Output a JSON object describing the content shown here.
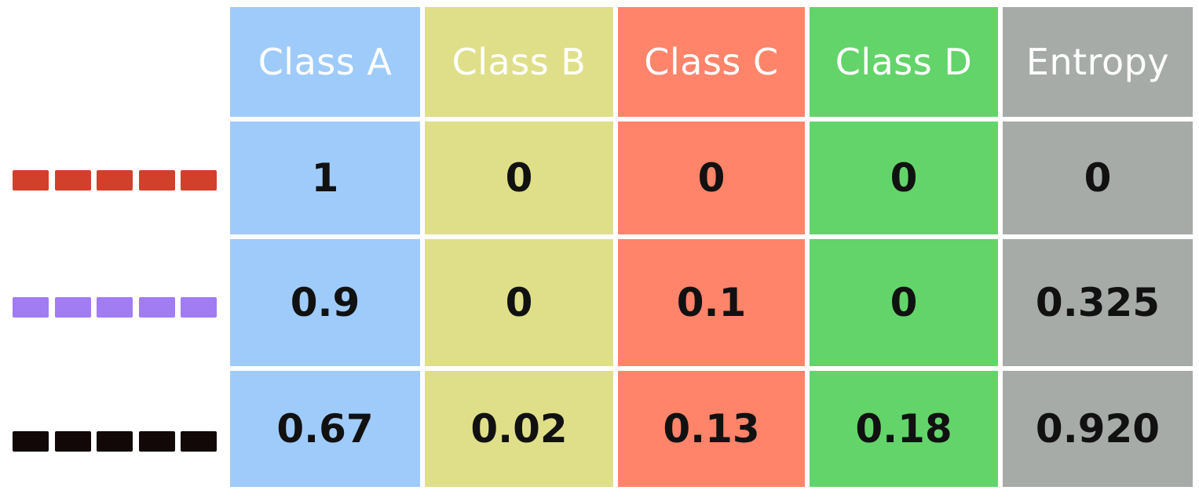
{
  "colors": {
    "class_a": "#9fcbfa",
    "class_b": "#dfdf8a",
    "class_c": "#ff846a",
    "class_d": "#63d46a",
    "entropy": "#a6aba8"
  },
  "table": {
    "headers": [
      "Class A",
      "Class B",
      "Class C",
      "Class D",
      "Entropy"
    ],
    "rows": [
      {
        "legend_color": "#d2402c",
        "values": [
          "1",
          "0",
          "0",
          "0",
          "0"
        ]
      },
      {
        "legend_color": "#a17cf2",
        "values": [
          "0.9",
          "0",
          "0.1",
          "0",
          "0.325"
        ]
      },
      {
        "legend_color": "#120808",
        "values": [
          "0.67",
          "0.02",
          "0.13",
          "0.18",
          "0.920"
        ]
      }
    ]
  }
}
